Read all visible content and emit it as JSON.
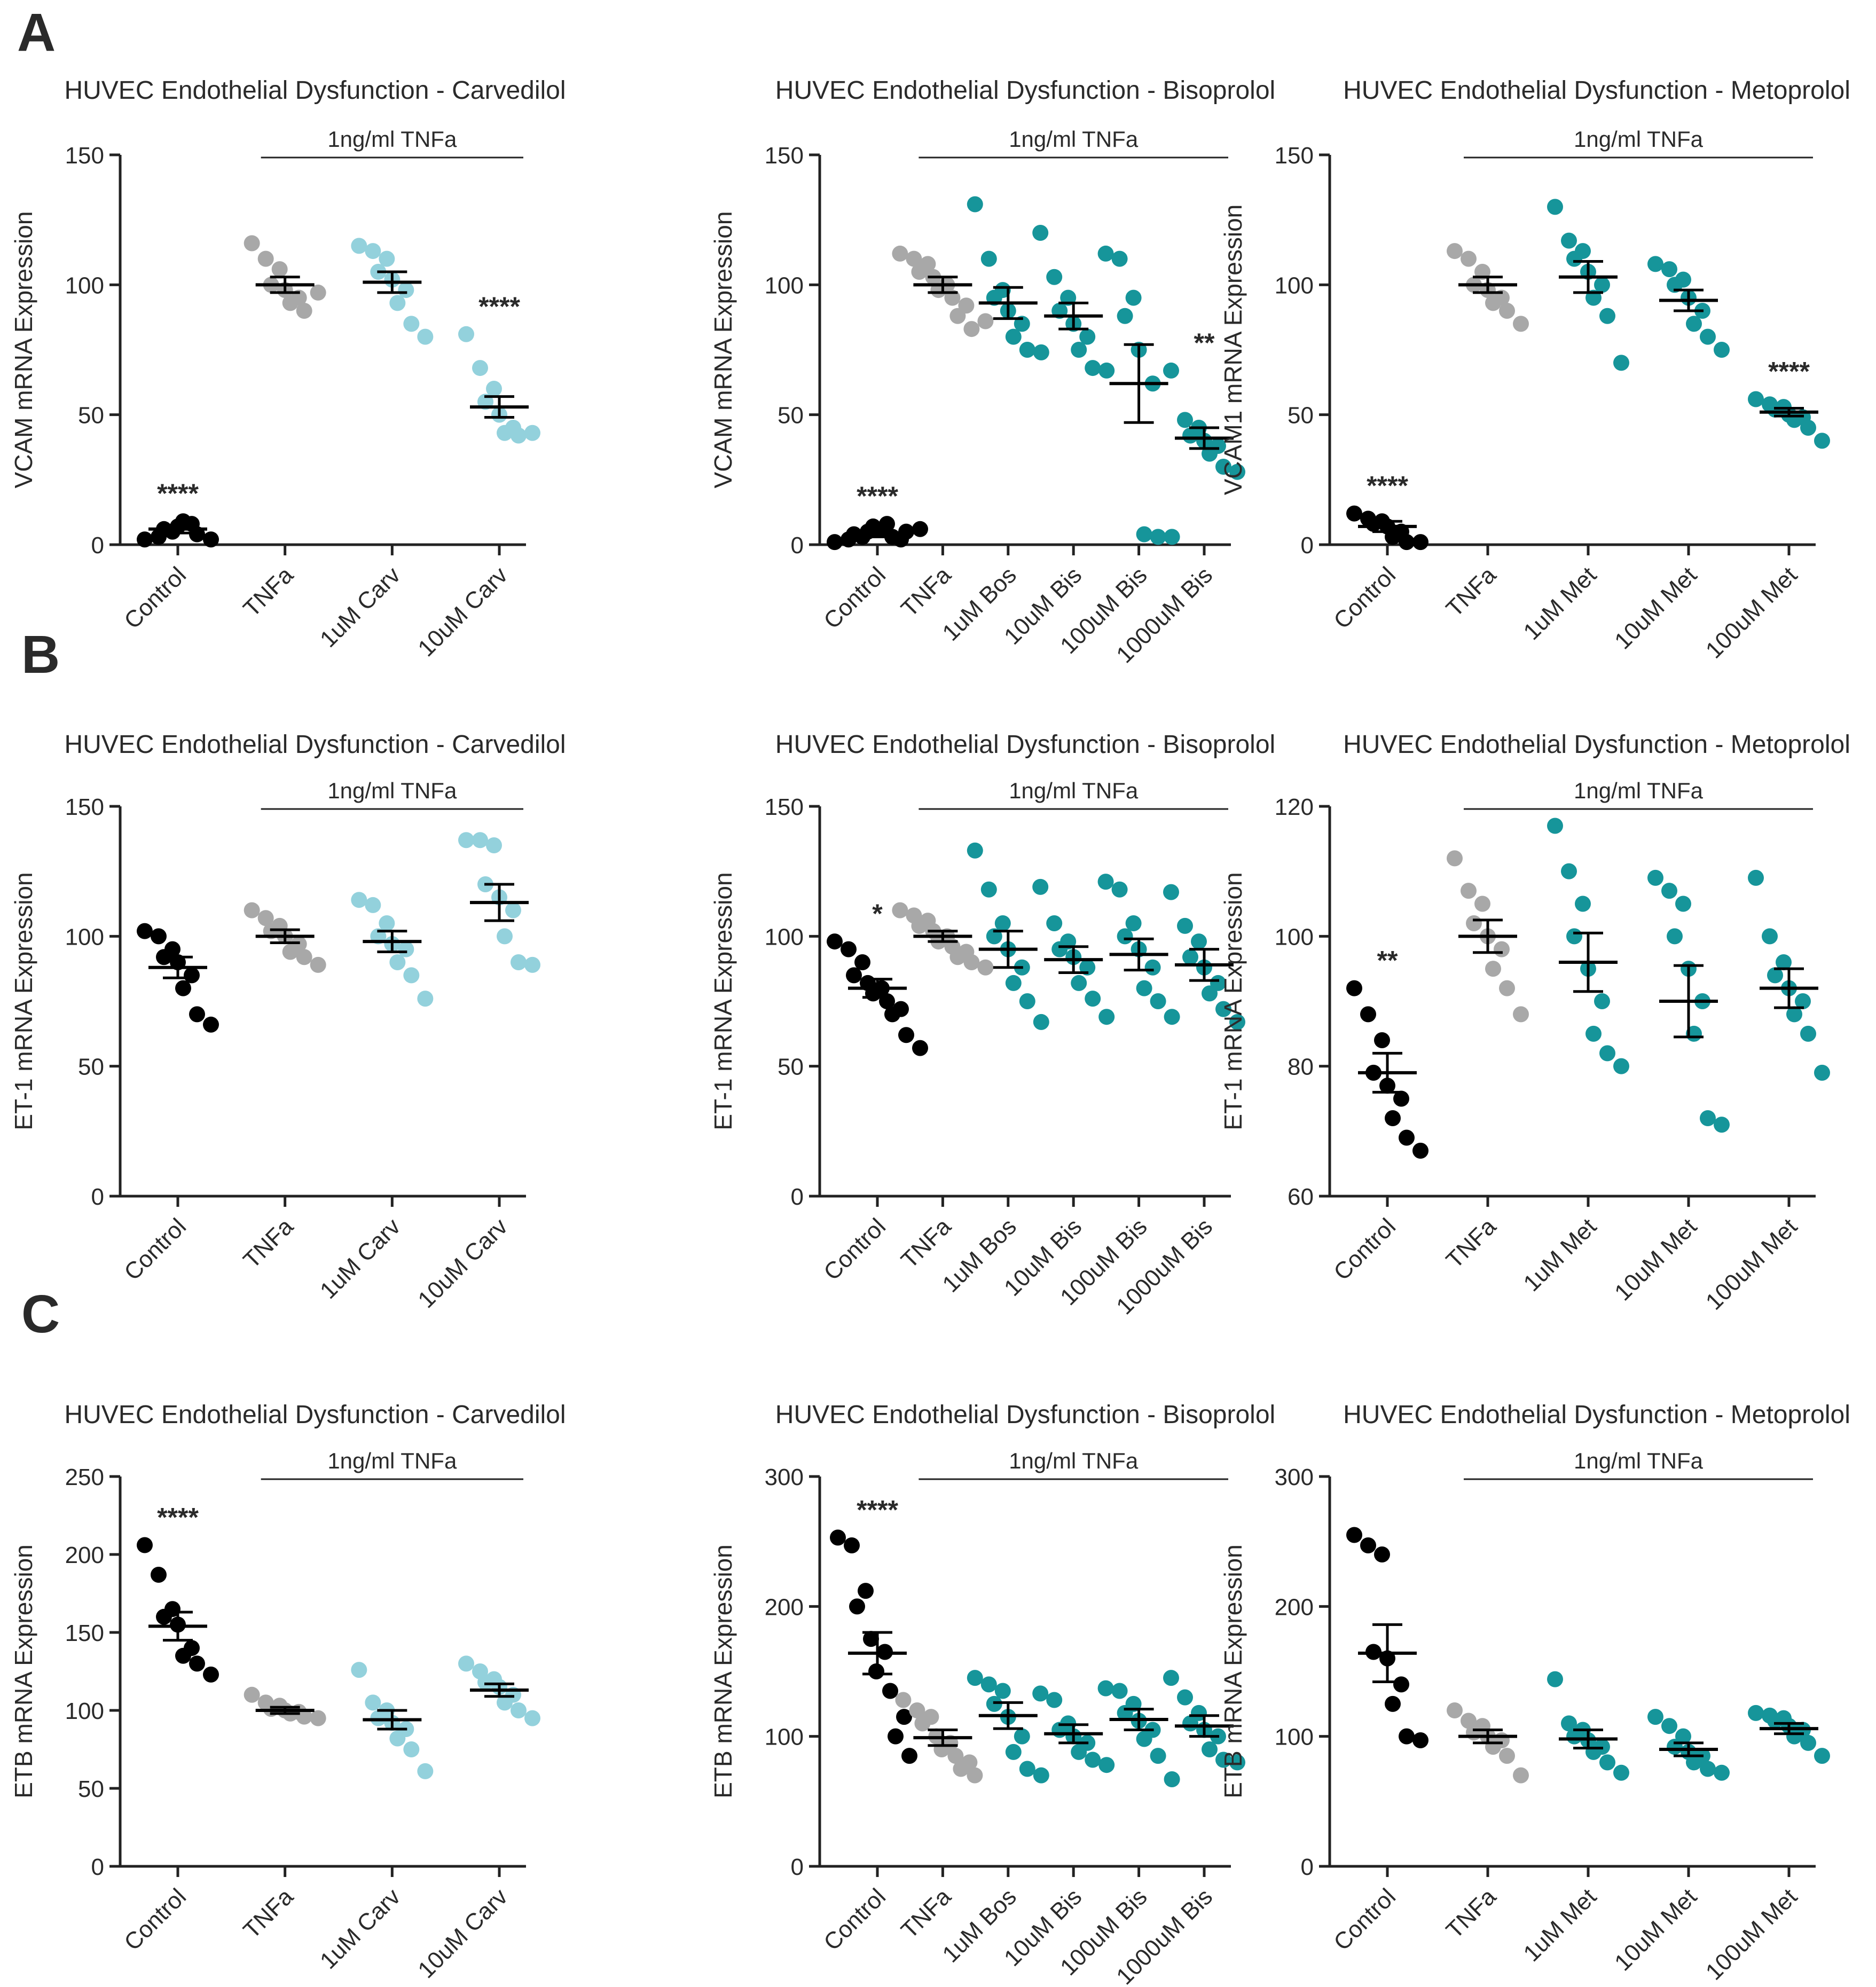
{
  "figure": {
    "panel_labels": [
      "A",
      "B",
      "C"
    ],
    "colors": {
      "black": "#000000",
      "gray": "#a8a8a8",
      "lightblue": "#93d1dc",
      "teal": "#16959a",
      "axis": "#222222"
    }
  },
  "chart_data": [
    {
      "type": "scatter",
      "panel": "A",
      "title": "HUVEC Endothelial Dysfunction - Carvedilol",
      "ylabel": "VCAM mRNA Expression",
      "ylim": [
        0,
        150
      ],
      "yticks": [
        0,
        50,
        100,
        150
      ],
      "bracket_label": "1ng/ml TNFa",
      "bracket_span": [
        1,
        3
      ],
      "categories": [
        "Control",
        "TNFa",
        "1uM Carv",
        "10uM Carv"
      ],
      "colors": [
        "black",
        "gray",
        "lightblue",
        "lightblue"
      ],
      "groups": [
        {
          "points": [
            2,
            3,
            5,
            6,
            7,
            8,
            9,
            4,
            2
          ],
          "mean": 6,
          "sem": 1.5,
          "sig": "****"
        },
        {
          "points": [
            116,
            110,
            106,
            100,
            98,
            95,
            93,
            90,
            97
          ],
          "mean": 100,
          "sem": 3,
          "sig": ""
        },
        {
          "points": [
            115,
            113,
            110,
            105,
            102,
            98,
            93,
            85,
            80
          ],
          "mean": 101,
          "sem": 4,
          "sig": ""
        },
        {
          "points": [
            81,
            68,
            60,
            55,
            50,
            45,
            43,
            42,
            43
          ],
          "mean": 53,
          "sem": 4,
          "sig": "****"
        }
      ]
    },
    {
      "type": "scatter",
      "panel": "A",
      "title": "HUVEC Endothelial Dysfunction - Bisoprolol",
      "ylabel": "VCAM mRNA Expression",
      "ylim": [
        0,
        150
      ],
      "yticks": [
        0,
        50,
        100,
        150
      ],
      "bracket_label": "1ng/ml TNFa",
      "bracket_span": [
        1,
        5
      ],
      "categories": [
        "Control",
        "TNFa",
        "1uM Bos",
        "10uM Bis",
        "100uM Bis",
        "1000uM Bis"
      ],
      "colors": [
        "black",
        "gray",
        "teal",
        "teal",
        "teal",
        "teal"
      ],
      "groups": [
        {
          "points": [
            1,
            2,
            3,
            4,
            5,
            6,
            7,
            8,
            2,
            3,
            5,
            6
          ],
          "mean": 4,
          "sem": 1,
          "sig": "****"
        },
        {
          "points": [
            112,
            110,
            108,
            105,
            103,
            100,
            98,
            95,
            92,
            88,
            83,
            86
          ],
          "mean": 100,
          "sem": 3,
          "sig": ""
        },
        {
          "points": [
            131,
            110,
            98,
            95,
            90,
            85,
            80,
            75,
            74
          ],
          "mean": 93,
          "sem": 6,
          "sig": ""
        },
        {
          "points": [
            120,
            103,
            95,
            90,
            85,
            80,
            75,
            68,
            67
          ],
          "mean": 88,
          "sem": 5,
          "sig": ""
        },
        {
          "points": [
            112,
            110,
            95,
            88,
            75,
            62,
            4,
            3,
            3
          ],
          "mean": 62,
          "sem": 15,
          "sig": ""
        },
        {
          "points": [
            67,
            48,
            45,
            42,
            40,
            38,
            35,
            30,
            28
          ],
          "mean": 41,
          "sem": 4,
          "sig": "**"
        }
      ]
    },
    {
      "type": "scatter",
      "panel": "A",
      "title": "HUVEC Endothelial Dysfunction - Metoprolol",
      "ylabel": "VCAM1 mRNA Expression",
      "ylim": [
        0,
        150
      ],
      "yticks": [
        0,
        50,
        100,
        150
      ],
      "bracket_label": "1ng/ml TNFa",
      "bracket_span": [
        1,
        4
      ],
      "categories": [
        "Control",
        "TNFa",
        "1uM Met",
        "10uM Met",
        "100uM Met"
      ],
      "colors": [
        "black",
        "gray",
        "teal",
        "teal",
        "teal"
      ],
      "groups": [
        {
          "points": [
            12,
            10,
            9,
            8,
            7,
            5,
            3,
            1,
            1
          ],
          "mean": 7,
          "sem": 2,
          "sig": "****"
        },
        {
          "points": [
            113,
            110,
            105,
            100,
            98,
            95,
            93,
            90,
            85
          ],
          "mean": 100,
          "sem": 3,
          "sig": ""
        },
        {
          "points": [
            130,
            117,
            113,
            110,
            105,
            100,
            95,
            88,
            70
          ],
          "mean": 103,
          "sem": 6,
          "sig": ""
        },
        {
          "points": [
            108,
            106,
            102,
            100,
            95,
            90,
            85,
            80,
            75
          ],
          "mean": 94,
          "sem": 4,
          "sig": ""
        },
        {
          "points": [
            56,
            54,
            53,
            52,
            50,
            49,
            48,
            45,
            40
          ],
          "mean": 51,
          "sem": 1.5,
          "sig": "****"
        }
      ]
    },
    {
      "type": "scatter",
      "panel": "B",
      "title": "HUVEC Endothelial Dysfunction - Carvedilol",
      "ylabel": "ET-1 mRNA Expression",
      "ylim": [
        0,
        150
      ],
      "yticks": [
        0,
        50,
        100,
        150
      ],
      "bracket_label": "1ng/ml TNFa",
      "bracket_span": [
        1,
        3
      ],
      "categories": [
        "Control",
        "TNFa",
        "1uM Carv",
        "10uM Carv"
      ],
      "colors": [
        "black",
        "gray",
        "lightblue",
        "lightblue"
      ],
      "groups": [
        {
          "points": [
            102,
            100,
            95,
            92,
            90,
            85,
            80,
            70,
            66
          ],
          "mean": 88,
          "sem": 4,
          "sig": ""
        },
        {
          "points": [
            110,
            107,
            104,
            102,
            100,
            97,
            94,
            92,
            89
          ],
          "mean": 100,
          "sem": 2.5,
          "sig": ""
        },
        {
          "points": [
            114,
            112,
            105,
            100,
            97,
            95,
            90,
            85,
            76
          ],
          "mean": 98,
          "sem": 4,
          "sig": ""
        },
        {
          "points": [
            137,
            137,
            135,
            120,
            115,
            110,
            100,
            90,
            89
          ],
          "mean": 113,
          "sem": 7,
          "sig": ""
        }
      ]
    },
    {
      "type": "scatter",
      "panel": "B",
      "title": "HUVEC Endothelial Dysfunction - Bisoprolol",
      "ylabel": "ET-1 mRNA Expression",
      "ylim": [
        0,
        150
      ],
      "yticks": [
        0,
        50,
        100,
        150
      ],
      "bracket_label": "1ng/ml TNFa",
      "bracket_span": [
        1,
        5
      ],
      "categories": [
        "Control",
        "TNFa",
        "1uM Bos",
        "10uM Bis",
        "100uM Bis",
        "1000uM Bis"
      ],
      "colors": [
        "black",
        "gray",
        "teal",
        "teal",
        "teal",
        "teal"
      ],
      "groups": [
        {
          "points": [
            98,
            95,
            90,
            85,
            82,
            80,
            78,
            75,
            72,
            70,
            62,
            57
          ],
          "mean": 80,
          "sem": 3.5,
          "sig": "*"
        },
        {
          "points": [
            110,
            108,
            106,
            104,
            102,
            100,
            98,
            96,
            94,
            92,
            90,
            88
          ],
          "mean": 100,
          "sem": 2,
          "sig": ""
        },
        {
          "points": [
            133,
            118,
            105,
            100,
            95,
            88,
            82,
            75,
            67
          ],
          "mean": 95,
          "sem": 7,
          "sig": ""
        },
        {
          "points": [
            119,
            105,
            98,
            95,
            92,
            88,
            82,
            76,
            69
          ],
          "mean": 91,
          "sem": 5,
          "sig": ""
        },
        {
          "points": [
            121,
            118,
            105,
            100,
            95,
            88,
            80,
            75,
            69
          ],
          "mean": 93,
          "sem": 6,
          "sig": ""
        },
        {
          "points": [
            117,
            104,
            98,
            92,
            88,
            82,
            78,
            72,
            67
          ],
          "mean": 89,
          "sem": 6,
          "sig": ""
        }
      ]
    },
    {
      "type": "scatter",
      "panel": "B",
      "title": "HUVEC Endothelial Dysfunction - Metoprolol",
      "ylabel": "ET-1 mRNA Expression",
      "ylim": [
        60,
        120
      ],
      "yticks": [
        60,
        80,
        100,
        120
      ],
      "bracket_label": "1ng/ml TNFa",
      "bracket_span": [
        1,
        4
      ],
      "categories": [
        "Control",
        "TNFa",
        "1uM Met",
        "10uM Met",
        "100uM Met"
      ],
      "colors": [
        "black",
        "gray",
        "teal",
        "teal",
        "teal"
      ],
      "groups": [
        {
          "points": [
            92,
            88,
            84,
            79,
            77,
            75,
            72,
            69,
            67
          ],
          "mean": 79,
          "sem": 3,
          "sig": "**"
        },
        {
          "points": [
            112,
            107,
            105,
            102,
            100,
            98,
            95,
            92,
            88
          ],
          "mean": 100,
          "sem": 2.5,
          "sig": ""
        },
        {
          "points": [
            117,
            110,
            105,
            100,
            95,
            90,
            85,
            82,
            80
          ],
          "mean": 96,
          "sem": 4.5,
          "sig": ""
        },
        {
          "points": [
            109,
            107,
            105,
            100,
            95,
            90,
            85,
            72,
            71
          ],
          "mean": 90,
          "sem": 5.5,
          "sig": ""
        },
        {
          "points": [
            109,
            100,
            96,
            94,
            92,
            90,
            88,
            85,
            79
          ],
          "mean": 92,
          "sem": 3,
          "sig": ""
        }
      ]
    },
    {
      "type": "scatter",
      "panel": "C",
      "title": "HUVEC Endothelial Dysfunction - Carvedilol",
      "ylabel": "ETB mRNA Expression",
      "ylim": [
        0,
        250
      ],
      "yticks": [
        0,
        50,
        100,
        150,
        200,
        250
      ],
      "bracket_label": "1ng/ml TNFa",
      "bracket_span": [
        1,
        3
      ],
      "categories": [
        "Control",
        "TNFa",
        "1uM Carv",
        "10uM Carv"
      ],
      "colors": [
        "black",
        "gray",
        "lightblue",
        "lightblue"
      ],
      "groups": [
        {
          "points": [
            206,
            187,
            165,
            160,
            155,
            140,
            135,
            130,
            123
          ],
          "mean": 154,
          "sem": 9,
          "sig": "****"
        },
        {
          "points": [
            110,
            105,
            103,
            101,
            100,
            99,
            98,
            96,
            95
          ],
          "mean": 100,
          "sem": 2,
          "sig": ""
        },
        {
          "points": [
            126,
            105,
            100,
            95,
            92,
            88,
            82,
            75,
            61
          ],
          "mean": 94,
          "sem": 6,
          "sig": ""
        },
        {
          "points": [
            130,
            125,
            120,
            118,
            115,
            110,
            105,
            100,
            95
          ],
          "mean": 113,
          "sem": 4,
          "sig": ""
        }
      ]
    },
    {
      "type": "scatter",
      "panel": "C",
      "title": "HUVEC Endothelial Dysfunction - Bisoprolol",
      "ylabel": "ETB mRNA Expression",
      "ylim": [
        0,
        300
      ],
      "yticks": [
        0,
        100,
        200,
        300
      ],
      "bracket_label": "1ng/ml TNFa",
      "bracket_span": [
        1,
        5
      ],
      "categories": [
        "Control",
        "TNFa",
        "1uM Bos",
        "10uM Bis",
        "100uM Bis",
        "1000uM Bis"
      ],
      "colors": [
        "black",
        "gray",
        "teal",
        "teal",
        "teal",
        "teal"
      ],
      "groups": [
        {
          "points": [
            253,
            247,
            212,
            200,
            175,
            165,
            150,
            135,
            115,
            100,
            85
          ],
          "mean": 164,
          "sem": 16,
          "sig": "****"
        },
        {
          "points": [
            128,
            120,
            115,
            110,
            100,
            95,
            90,
            85,
            80,
            75,
            70
          ],
          "mean": 99,
          "sem": 6,
          "sig": ""
        },
        {
          "points": [
            145,
            140,
            135,
            125,
            115,
            100,
            88,
            75,
            70
          ],
          "mean": 116,
          "sem": 10,
          "sig": ""
        },
        {
          "points": [
            133,
            128,
            110,
            105,
            100,
            95,
            88,
            82,
            78
          ],
          "mean": 102,
          "sem": 7,
          "sig": ""
        },
        {
          "points": [
            137,
            135,
            125,
            118,
            112,
            105,
            98,
            85,
            67
          ],
          "mean": 113,
          "sem": 8,
          "sig": ""
        },
        {
          "points": [
            145,
            130,
            118,
            110,
            105,
            100,
            90,
            82,
            80
          ],
          "mean": 108,
          "sem": 8,
          "sig": ""
        }
      ]
    },
    {
      "type": "scatter",
      "panel": "C",
      "title": "HUVEC Endothelial Dysfunction - Metoprolol",
      "ylabel": "ETB mRNA Expression",
      "ylim": [
        0,
        300
      ],
      "yticks": [
        0,
        100,
        200,
        300
      ],
      "bracket_label": "1ng/ml TNFa",
      "bracket_span": [
        1,
        4
      ],
      "categories": [
        "Control",
        "TNFa",
        "1uM Met",
        "10uM Met",
        "100uM Met"
      ],
      "colors": [
        "black",
        "gray",
        "teal",
        "teal",
        "teal"
      ],
      "groups": [
        {
          "points": [
            255,
            247,
            240,
            165,
            160,
            140,
            125,
            100,
            97
          ],
          "mean": 164,
          "sem": 22,
          "sig": ""
        },
        {
          "points": [
            120,
            112,
            108,
            103,
            100,
            97,
            92,
            85,
            70
          ],
          "mean": 100,
          "sem": 5,
          "sig": ""
        },
        {
          "points": [
            144,
            110,
            105,
            100,
            97,
            92,
            88,
            80,
            72
          ],
          "mean": 98,
          "sem": 7,
          "sig": ""
        },
        {
          "points": [
            115,
            108,
            100,
            92,
            88,
            85,
            80,
            75,
            72
          ],
          "mean": 90,
          "sem": 5,
          "sig": ""
        },
        {
          "points": [
            118,
            116,
            114,
            112,
            108,
            105,
            100,
            95,
            85
          ],
          "mean": 106,
          "sem": 4,
          "sig": ""
        }
      ]
    }
  ]
}
